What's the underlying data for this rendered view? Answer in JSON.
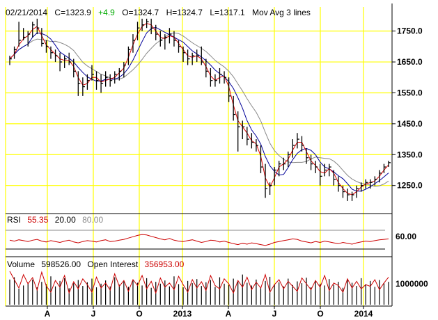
{
  "header": {
    "date": "02/21/2014",
    "close": "C=1323.9",
    "change": "+4.9",
    "open": "O=1324.7",
    "high": "H=1324.7",
    "low": "L=1317.1",
    "ma_label": "Mov Avg 3 lines"
  },
  "rsi_panel": {
    "label": "RSI",
    "value": "55.35",
    "lower": "20.00",
    "upper": "80.00",
    "tick": "60.00"
  },
  "volume_panel": {
    "label": "Volume",
    "volume": "598526.00",
    "oi_label": "Open Interest",
    "oi_value": "356953.00",
    "tick": "1000000"
  },
  "colors": {
    "grid": "#ffff00",
    "price_bar": "#000000",
    "ma_fast": "#dd0000",
    "ma_mid": "#000099",
    "ma_slow": "#888888",
    "rsi_line": "#cc0000",
    "oi_line": "#cc0000",
    "change_green": "#00aa00"
  },
  "chart_data": {
    "type": "line",
    "title": "",
    "price_axis": {
      "ticks": [
        1250,
        1350,
        1450,
        1550,
        1650,
        1750
      ],
      "tick_labels": [
        "1250.0",
        "1350.0",
        "1450.0",
        "1550.0",
        "1650.0",
        "1750.0"
      ],
      "range": [
        1175,
        1810
      ]
    },
    "x_ticks": [
      "A",
      "J",
      "O",
      "2013",
      "A",
      "J",
      "O",
      "2014"
    ],
    "price_bars": [
      {
        "h": 1670,
        "l": 1640,
        "c": 1660
      },
      {
        "h": 1700,
        "l": 1660,
        "c": 1690
      },
      {
        "h": 1780,
        "l": 1700,
        "c": 1720
      },
      {
        "h": 1760,
        "l": 1720,
        "c": 1730
      },
      {
        "h": 1750,
        "l": 1700,
        "c": 1740
      },
      {
        "h": 1780,
        "l": 1730,
        "c": 1770
      },
      {
        "h": 1790,
        "l": 1740,
        "c": 1760
      },
      {
        "h": 1760,
        "l": 1700,
        "c": 1710
      },
      {
        "h": 1720,
        "l": 1680,
        "c": 1700
      },
      {
        "h": 1700,
        "l": 1660,
        "c": 1680
      },
      {
        "h": 1690,
        "l": 1650,
        "c": 1670
      },
      {
        "h": 1680,
        "l": 1620,
        "c": 1650
      },
      {
        "h": 1670,
        "l": 1630,
        "c": 1660
      },
      {
        "h": 1680,
        "l": 1640,
        "c": 1650
      },
      {
        "h": 1660,
        "l": 1600,
        "c": 1620
      },
      {
        "h": 1620,
        "l": 1540,
        "c": 1580
      },
      {
        "h": 1600,
        "l": 1540,
        "c": 1570
      },
      {
        "h": 1610,
        "l": 1560,
        "c": 1590
      },
      {
        "h": 1640,
        "l": 1590,
        "c": 1610
      },
      {
        "h": 1620,
        "l": 1560,
        "c": 1590
      },
      {
        "h": 1610,
        "l": 1550,
        "c": 1580
      },
      {
        "h": 1620,
        "l": 1570,
        "c": 1600
      },
      {
        "h": 1610,
        "l": 1570,
        "c": 1590
      },
      {
        "h": 1620,
        "l": 1580,
        "c": 1610
      },
      {
        "h": 1630,
        "l": 1590,
        "c": 1620
      },
      {
        "h": 1650,
        "l": 1600,
        "c": 1640
      },
      {
        "h": 1700,
        "l": 1640,
        "c": 1690
      },
      {
        "h": 1740,
        "l": 1680,
        "c": 1720
      },
      {
        "h": 1780,
        "l": 1720,
        "c": 1760
      },
      {
        "h": 1790,
        "l": 1750,
        "c": 1770
      },
      {
        "h": 1790,
        "l": 1760,
        "c": 1780
      },
      {
        "h": 1790,
        "l": 1740,
        "c": 1760
      },
      {
        "h": 1770,
        "l": 1720,
        "c": 1740
      },
      {
        "h": 1750,
        "l": 1700,
        "c": 1720
      },
      {
        "h": 1740,
        "l": 1690,
        "c": 1730
      },
      {
        "h": 1760,
        "l": 1710,
        "c": 1740
      },
      {
        "h": 1750,
        "l": 1700,
        "c": 1720
      },
      {
        "h": 1720,
        "l": 1680,
        "c": 1700
      },
      {
        "h": 1700,
        "l": 1650,
        "c": 1680
      },
      {
        "h": 1690,
        "l": 1640,
        "c": 1660
      },
      {
        "h": 1680,
        "l": 1640,
        "c": 1670
      },
      {
        "h": 1690,
        "l": 1650,
        "c": 1670
      },
      {
        "h": 1700,
        "l": 1640,
        "c": 1650
      },
      {
        "h": 1660,
        "l": 1600,
        "c": 1620
      },
      {
        "h": 1630,
        "l": 1570,
        "c": 1590
      },
      {
        "h": 1610,
        "l": 1570,
        "c": 1590
      },
      {
        "h": 1630,
        "l": 1580,
        "c": 1610
      },
      {
        "h": 1620,
        "l": 1580,
        "c": 1600
      },
      {
        "h": 1600,
        "l": 1520,
        "c": 1540
      },
      {
        "h": 1540,
        "l": 1460,
        "c": 1480
      },
      {
        "h": 1490,
        "l": 1360,
        "c": 1440
      },
      {
        "h": 1460,
        "l": 1400,
        "c": 1440
      },
      {
        "h": 1440,
        "l": 1380,
        "c": 1400
      },
      {
        "h": 1420,
        "l": 1370,
        "c": 1390
      },
      {
        "h": 1400,
        "l": 1360,
        "c": 1380
      },
      {
        "h": 1380,
        "l": 1290,
        "c": 1310
      },
      {
        "h": 1320,
        "l": 1210,
        "c": 1240
      },
      {
        "h": 1260,
        "l": 1220,
        "c": 1250
      },
      {
        "h": 1310,
        "l": 1250,
        "c": 1300
      },
      {
        "h": 1330,
        "l": 1280,
        "c": 1320
      },
      {
        "h": 1340,
        "l": 1300,
        "c": 1320
      },
      {
        "h": 1360,
        "l": 1310,
        "c": 1350
      },
      {
        "h": 1400,
        "l": 1340,
        "c": 1380
      },
      {
        "h": 1420,
        "l": 1370,
        "c": 1400
      },
      {
        "h": 1410,
        "l": 1360,
        "c": 1380
      },
      {
        "h": 1370,
        "l": 1320,
        "c": 1340
      },
      {
        "h": 1350,
        "l": 1300,
        "c": 1320
      },
      {
        "h": 1330,
        "l": 1290,
        "c": 1310
      },
      {
        "h": 1320,
        "l": 1250,
        "c": 1280
      },
      {
        "h": 1320,
        "l": 1280,
        "c": 1300
      },
      {
        "h": 1320,
        "l": 1280,
        "c": 1310
      },
      {
        "h": 1300,
        "l": 1250,
        "c": 1270
      },
      {
        "h": 1280,
        "l": 1230,
        "c": 1250
      },
      {
        "h": 1250,
        "l": 1210,
        "c": 1230
      },
      {
        "h": 1240,
        "l": 1200,
        "c": 1220
      },
      {
        "h": 1230,
        "l": 1200,
        "c": 1220
      },
      {
        "h": 1250,
        "l": 1210,
        "c": 1240
      },
      {
        "h": 1260,
        "l": 1230,
        "c": 1250
      },
      {
        "h": 1270,
        "l": 1240,
        "c": 1260
      },
      {
        "h": 1270,
        "l": 1240,
        "c": 1260
      },
      {
        "h": 1280,
        "l": 1250,
        "c": 1270
      },
      {
        "h": 1300,
        "l": 1260,
        "c": 1290
      },
      {
        "h": 1320,
        "l": 1290,
        "c": 1310
      },
      {
        "h": 1330,
        "l": 1310,
        "c": 1324
      }
    ],
    "rsi": [
      52,
      50,
      53,
      51,
      49,
      52,
      54,
      50,
      48,
      51,
      49,
      47,
      50,
      52,
      48,
      46,
      49,
      51,
      50,
      48,
      51,
      53,
      49,
      50,
      52,
      54,
      57,
      60,
      63,
      65,
      64,
      61,
      58,
      55,
      53,
      56,
      52,
      50,
      49,
      51,
      53,
      50,
      47,
      49,
      52,
      51,
      48,
      50,
      47,
      44,
      42,
      45,
      43,
      46,
      44,
      42,
      40,
      43,
      47,
      49,
      51,
      53,
      55,
      54,
      50,
      48,
      46,
      49,
      47,
      50,
      48,
      46,
      44,
      47,
      45,
      43,
      46,
      48,
      50,
      49,
      51,
      53,
      54,
      55
    ],
    "volume": [
      55,
      60,
      35,
      42,
      48,
      55,
      38,
      50,
      45,
      62,
      40,
      52,
      58,
      36,
      47,
      54,
      41,
      49,
      57,
      38,
      46,
      53,
      40,
      60,
      44,
      51,
      39,
      55,
      48,
      42,
      58,
      37,
      50,
      46,
      53,
      40,
      62,
      45,
      38,
      52,
      47,
      56,
      41,
      49,
      54,
      39,
      60,
      46,
      43,
      57,
      50,
      66,
      48,
      42,
      55,
      38,
      52,
      61,
      45,
      49,
      40,
      57,
      43,
      51,
      47,
      59,
      38,
      53,
      46,
      42,
      56,
      44,
      50,
      37,
      55,
      48,
      41,
      58,
      45,
      52,
      39,
      54,
      47,
      50
    ],
    "open_interest": [
      80,
      60,
      40,
      72,
      50,
      65,
      35,
      78,
      45,
      30,
      58,
      42,
      70,
      28,
      55,
      38,
      62,
      48,
      30,
      66,
      40,
      52,
      35,
      74,
      44,
      58,
      32,
      60,
      46,
      70,
      38,
      56,
      28,
      64,
      42,
      52,
      36,
      68,
      48,
      30,
      60,
      40,
      55,
      34,
      70,
      46,
      38,
      62,
      50,
      28,
      58,
      42,
      66,
      36,
      54,
      40,
      72,
      30,
      48,
      60,
      38,
      56,
      44,
      32,
      64,
      50,
      36,
      58,
      42,
      70,
      34,
      52,
      46,
      30,
      62,
      40,
      56,
      38,
      48,
      44,
      60,
      36,
      52,
      66
    ]
  }
}
